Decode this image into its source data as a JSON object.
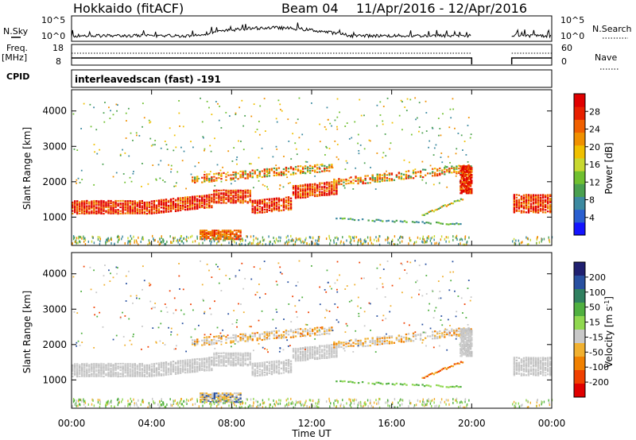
{
  "header": {
    "station": "Hokkaido (fitACF)",
    "beam": "Beam 04",
    "date_range": "11/Apr/2016 - 12/Apr/2016"
  },
  "labels": {
    "nsky": "N.Sky",
    "nsearch": "N.Search",
    "freq": "Freq.",
    "freq_unit": "[MHz]",
    "nave": "Nave",
    "cpid": "CPID",
    "cpid_text": "interleavedscan (fast) -191",
    "slant_range": "Slant Range [km]",
    "time_axis": "Time UT",
    "power_label": "Power [dB]",
    "velocity_label_main": "Velocity [m s",
    "velocity_label_exp": "-1",
    "velocity_label_end": "]"
  },
  "noise_axis": {
    "left_ticks": [
      "10^5",
      "10^0"
    ],
    "right_ticks": [
      "10^5",
      "10^0"
    ]
  },
  "freq_axis": {
    "left_ticks": [
      "18",
      "8"
    ],
    "right_ticks": [
      "60",
      "0"
    ]
  },
  "chart_data": [
    {
      "type": "heatmap",
      "name": "power",
      "xlabel": "Time UT",
      "ylabel": "Slant Range [km]",
      "xlim": [
        0,
        24
      ],
      "ylim": [
        200,
        4600
      ],
      "x_ticks": [
        "00:00",
        "04:00",
        "08:00",
        "12:00",
        "16:00",
        "20:00",
        "00:00"
      ],
      "y_ticks": [
        "1000",
        "2000",
        "3000",
        "4000"
      ],
      "y_tick_values": [
        1000,
        2000,
        3000,
        4000
      ],
      "colorbar_label": "Power [dB]",
      "colorbar_ticks": [
        "4",
        "8",
        "12",
        "16",
        "20",
        "24",
        "28"
      ],
      "colorbar_colors": [
        "#1414ff",
        "#2a5fd0",
        "#3d8aa0",
        "#4aa050",
        "#70c030",
        "#c8d830",
        "#f0c000",
        "#f09000",
        "#f06000",
        "#e82000",
        "#e00000"
      ],
      "data_gap_hours": [
        20,
        22
      ]
    },
    {
      "type": "heatmap",
      "name": "velocity",
      "xlabel": "Time UT",
      "ylabel": "Slant Range [km]",
      "xlim": [
        0,
        24
      ],
      "ylim": [
        200,
        4600
      ],
      "x_ticks": [
        "00:00",
        "04:00",
        "08:00",
        "12:00",
        "16:00",
        "20:00",
        "00:00"
      ],
      "y_ticks": [
        "1000",
        "2000",
        "3000",
        "4000"
      ],
      "y_tick_values": [
        1000,
        2000,
        3000,
        4000
      ],
      "colorbar_label": "Velocity [m s-1]",
      "colorbar_ticks": [
        "200",
        "100",
        "50",
        "15",
        "-15",
        "-50",
        "-100",
        "-200"
      ],
      "colorbar_colors": [
        "#202070",
        "#2850a0",
        "#308060",
        "#50b040",
        "#90d850",
        "#c8c8c8",
        "#f0b030",
        "#f08000",
        "#f04000",
        "#e00000"
      ],
      "data_gap_hours": [
        20,
        22
      ]
    }
  ]
}
